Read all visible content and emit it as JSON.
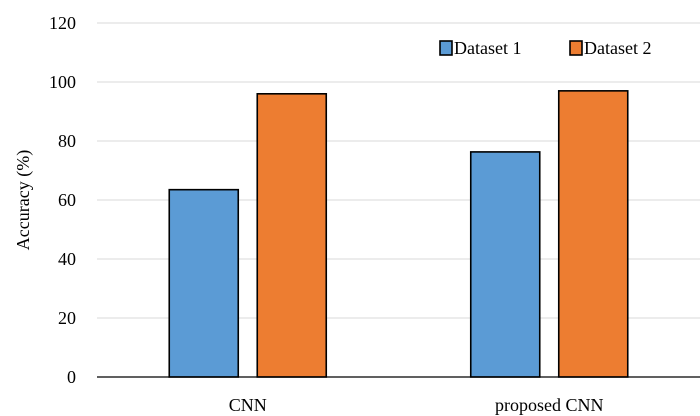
{
  "chart_data": {
    "type": "bar",
    "title": "",
    "xlabel": "",
    "ylabel": "Accuracy (%)",
    "ylim": [
      0,
      120
    ],
    "yticks": [
      "0",
      "20",
      "40",
      "60",
      "80",
      "100",
      "120"
    ],
    "grid": true,
    "legend_position": "top-right",
    "categories": [
      "CNN",
      "proposed CNN"
    ],
    "series": [
      {
        "name": "Dataset 1",
        "color": "#5b9bd5",
        "values": [
          63.5,
          76.3
        ]
      },
      {
        "name": "Dataset 2",
        "color": "#ed7d31",
        "values": [
          96.0,
          97.0
        ]
      }
    ]
  }
}
